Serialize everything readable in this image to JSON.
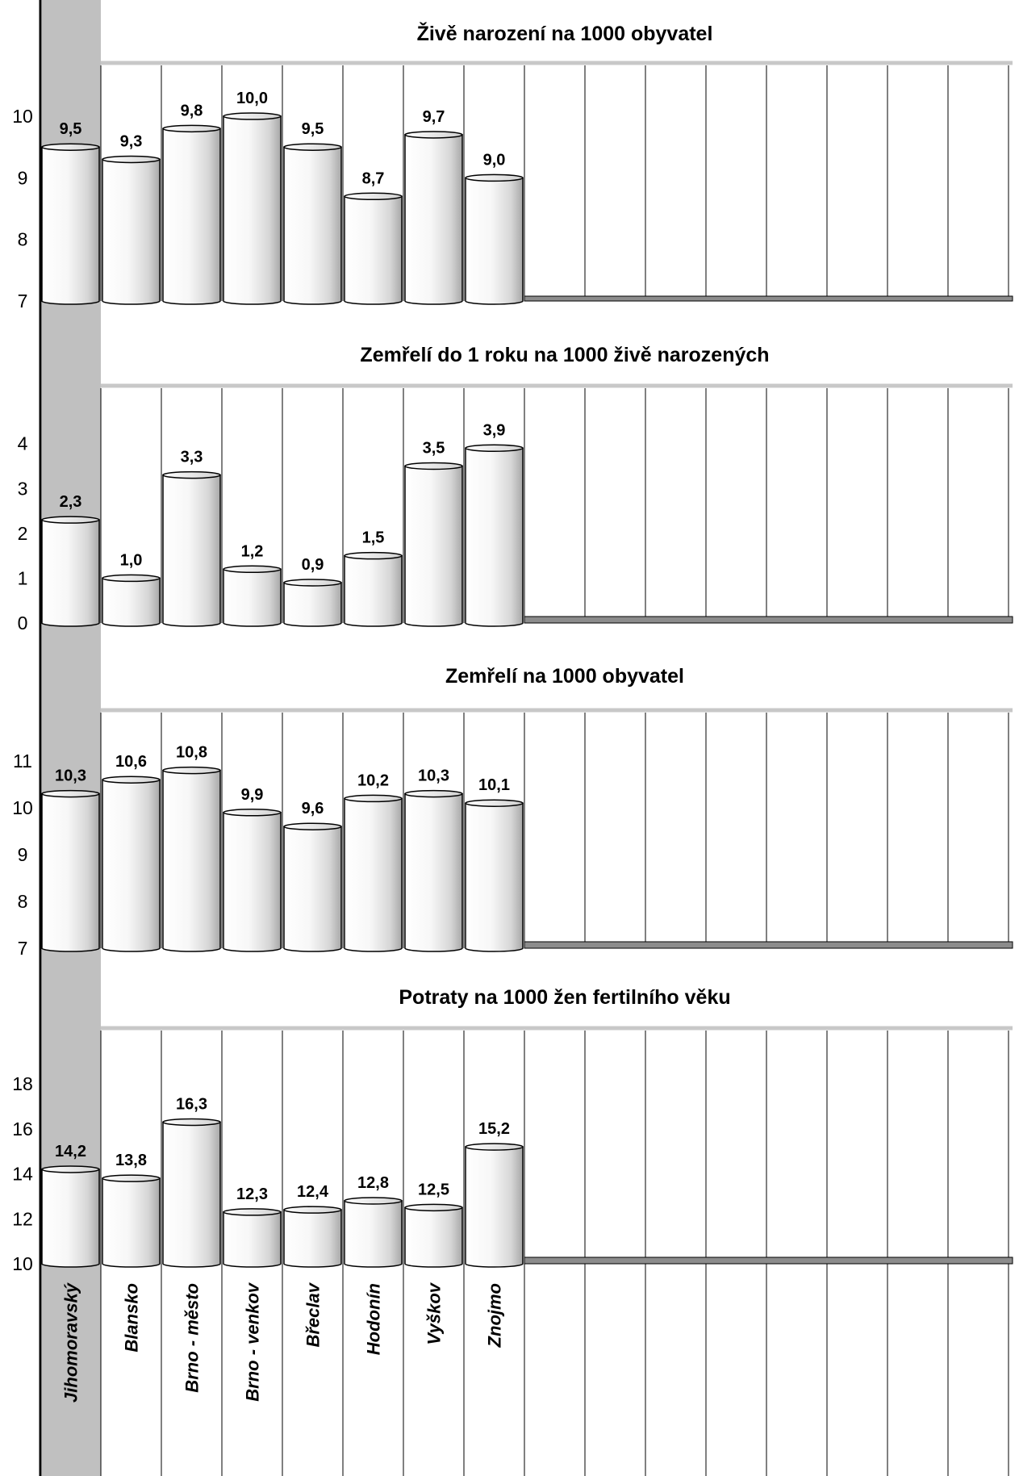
{
  "chart_data": [
    {
      "type": "bar",
      "title": "Živě narození na 1000 obyvatel",
      "categories": [
        "Jihomoravský",
        "Blansko",
        "Brno - město",
        "Brno - venkov",
        "Břeclav",
        "Hodonín",
        "Vyškov",
        "Znojmo"
      ],
      "values": [
        9.5,
        9.3,
        9.8,
        10.0,
        9.5,
        8.7,
        9.7,
        9.0
      ],
      "value_labels": [
        "9,5",
        "9,3",
        "9,8",
        "10,0",
        "9,5",
        "8,7",
        "9,7",
        "9,0"
      ],
      "yticks": [
        7,
        8,
        9,
        10
      ],
      "ylim": [
        7,
        10.8
      ]
    },
    {
      "type": "bar",
      "title": "Zemřelí do 1 roku na 1000 živě narozených",
      "categories": [
        "Jihomoravský",
        "Blansko",
        "Brno - město",
        "Brno - venkov",
        "Břeclav",
        "Hodonín",
        "Vyškov",
        "Znojmo"
      ],
      "values": [
        2.3,
        1.0,
        3.3,
        1.2,
        0.9,
        1.5,
        3.5,
        3.9
      ],
      "value_labels": [
        "2,3",
        "1,0",
        "3,3",
        "1,2",
        "0,9",
        "1,5",
        "3,5",
        "3,9"
      ],
      "yticks": [
        0,
        1,
        2,
        3,
        4
      ],
      "ylim": [
        0,
        5.2
      ]
    },
    {
      "type": "bar",
      "title": "Zemřelí na 1000 obyvatel",
      "categories": [
        "Jihomoravský",
        "Blansko",
        "Brno - město",
        "Brno - venkov",
        "Břeclav",
        "Hodonín",
        "Vyškov",
        "Znojmo"
      ],
      "values": [
        10.3,
        10.6,
        10.8,
        9.9,
        9.6,
        10.2,
        10.3,
        10.1
      ],
      "value_labels": [
        "10,3",
        "10,6",
        "10,8",
        "9,9",
        "9,6",
        "10,2",
        "10,3",
        "10,1"
      ],
      "yticks": [
        7,
        8,
        9,
        10,
        11
      ],
      "ylim": [
        7,
        12
      ]
    },
    {
      "type": "bar",
      "title": "Potraty na 1000 žen fertilního věku",
      "categories": [
        "Jihomoravský",
        "Blansko",
        "Brno - město",
        "Brno - venkov",
        "Břeclav",
        "Hodonín",
        "Vyškov",
        "Znojmo"
      ],
      "values": [
        14.2,
        13.8,
        16.3,
        12.3,
        12.4,
        12.8,
        12.5,
        15.2
      ],
      "value_labels": [
        "14,2",
        "13,8",
        "16,3",
        "12,3",
        "12,4",
        "12,8",
        "12,5",
        "15,2"
      ],
      "yticks": [
        10,
        12,
        14,
        16,
        18
      ],
      "ylim": [
        10,
        20.3
      ]
    }
  ],
  "categories": [
    "Jihomoravský",
    "Blansko",
    "Brno - město",
    "Brno - venkov",
    "Břeclav",
    "Hodonín",
    "Vyškov",
    "Znojmo"
  ],
  "colors": {
    "highlight_column": "#c0c0c0",
    "floor": "#8c8c8c",
    "title_rule": "#c8c8c8",
    "bar_edge": "#000000"
  }
}
